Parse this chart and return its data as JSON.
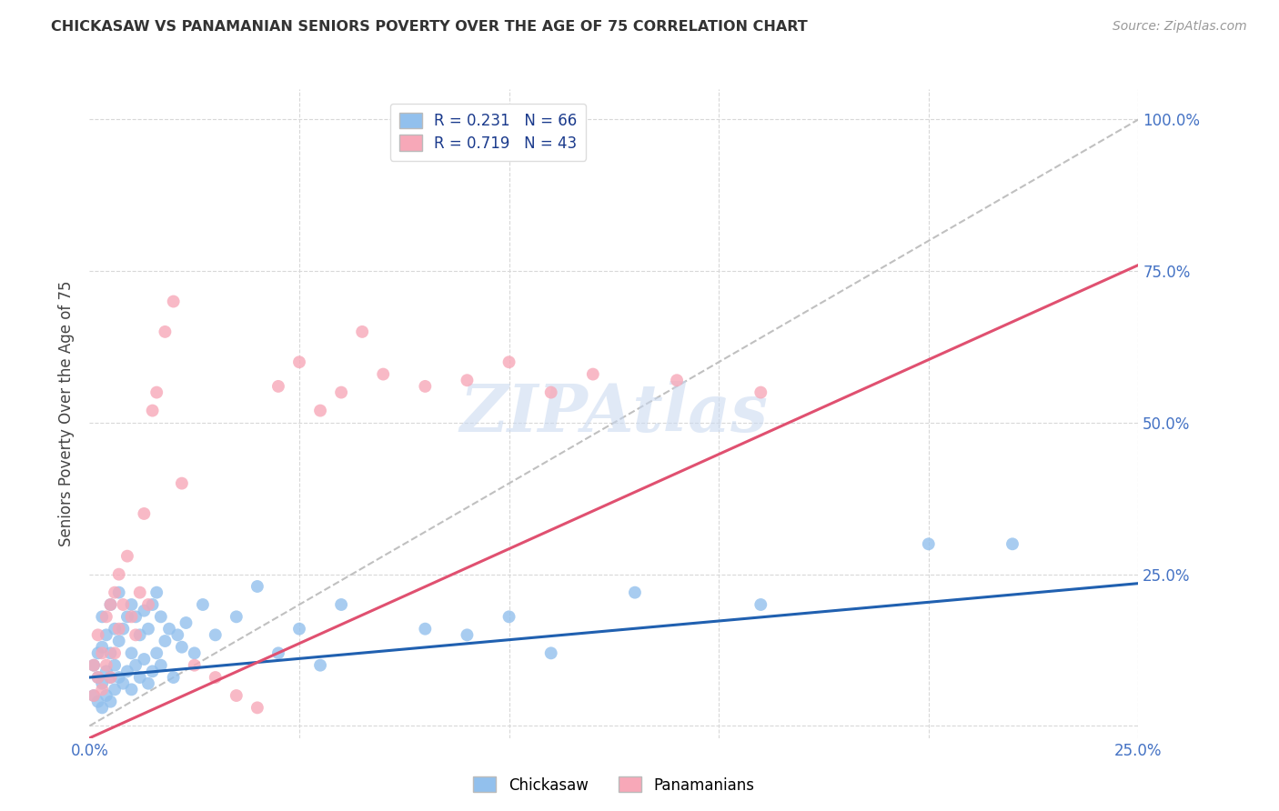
{
  "title": "CHICKASAW VS PANAMANIAN SENIORS POVERTY OVER THE AGE OF 75 CORRELATION CHART",
  "source": "Source: ZipAtlas.com",
  "ylabel": "Seniors Poverty Over the Age of 75",
  "xlim": [
    0.0,
    0.25
  ],
  "ylim": [
    -0.02,
    1.05
  ],
  "chickasaw_color": "#92c0ed",
  "panamanian_color": "#f7a8b8",
  "line_chickasaw_color": "#2060b0",
  "line_panamanian_color": "#e05070",
  "line_diagonal_color": "#c8c8c8",
  "R_chickasaw": 0.231,
  "N_chickasaw": 66,
  "R_panamanian": 0.719,
  "N_panamanian": 43,
  "legend_label_chickasaw": "Chickasaw",
  "legend_label_panamanian": "Panamanians",
  "watermark": "ZIPAtlas",
  "background_color": "#ffffff",
  "grid_color": "#d8d8d8",
  "chickasaw_x": [
    0.001,
    0.001,
    0.002,
    0.002,
    0.002,
    0.003,
    0.003,
    0.003,
    0.003,
    0.004,
    0.004,
    0.004,
    0.005,
    0.005,
    0.005,
    0.005,
    0.006,
    0.006,
    0.006,
    0.007,
    0.007,
    0.007,
    0.008,
    0.008,
    0.009,
    0.009,
    0.01,
    0.01,
    0.01,
    0.011,
    0.011,
    0.012,
    0.012,
    0.013,
    0.013,
    0.014,
    0.014,
    0.015,
    0.015,
    0.016,
    0.016,
    0.017,
    0.017,
    0.018,
    0.019,
    0.02,
    0.021,
    0.022,
    0.023,
    0.025,
    0.027,
    0.03,
    0.035,
    0.04,
    0.045,
    0.05,
    0.055,
    0.06,
    0.08,
    0.09,
    0.1,
    0.11,
    0.13,
    0.16,
    0.2,
    0.22
  ],
  "chickasaw_y": [
    0.05,
    0.1,
    0.04,
    0.08,
    0.12,
    0.03,
    0.07,
    0.13,
    0.18,
    0.05,
    0.09,
    0.15,
    0.04,
    0.08,
    0.12,
    0.2,
    0.06,
    0.1,
    0.16,
    0.08,
    0.14,
    0.22,
    0.07,
    0.16,
    0.09,
    0.18,
    0.06,
    0.12,
    0.2,
    0.1,
    0.18,
    0.08,
    0.15,
    0.11,
    0.19,
    0.07,
    0.16,
    0.09,
    0.2,
    0.12,
    0.22,
    0.1,
    0.18,
    0.14,
    0.16,
    0.08,
    0.15,
    0.13,
    0.17,
    0.12,
    0.2,
    0.15,
    0.18,
    0.23,
    0.12,
    0.16,
    0.1,
    0.2,
    0.16,
    0.15,
    0.18,
    0.12,
    0.22,
    0.2,
    0.3,
    0.3
  ],
  "panamanian_x": [
    0.001,
    0.001,
    0.002,
    0.002,
    0.003,
    0.003,
    0.004,
    0.004,
    0.005,
    0.005,
    0.006,
    0.006,
    0.007,
    0.007,
    0.008,
    0.009,
    0.01,
    0.011,
    0.012,
    0.013,
    0.014,
    0.015,
    0.016,
    0.018,
    0.02,
    0.022,
    0.025,
    0.03,
    0.035,
    0.04,
    0.045,
    0.05,
    0.055,
    0.06,
    0.065,
    0.07,
    0.08,
    0.09,
    0.1,
    0.11,
    0.12,
    0.14,
    0.16
  ],
  "panamanian_y": [
    0.05,
    0.1,
    0.08,
    0.15,
    0.06,
    0.12,
    0.1,
    0.18,
    0.08,
    0.2,
    0.12,
    0.22,
    0.16,
    0.25,
    0.2,
    0.28,
    0.18,
    0.15,
    0.22,
    0.35,
    0.2,
    0.52,
    0.55,
    0.65,
    0.7,
    0.4,
    0.1,
    0.08,
    0.05,
    0.03,
    0.56,
    0.6,
    0.52,
    0.55,
    0.65,
    0.58,
    0.56,
    0.57,
    0.6,
    0.55,
    0.58,
    0.57,
    0.55
  ]
}
